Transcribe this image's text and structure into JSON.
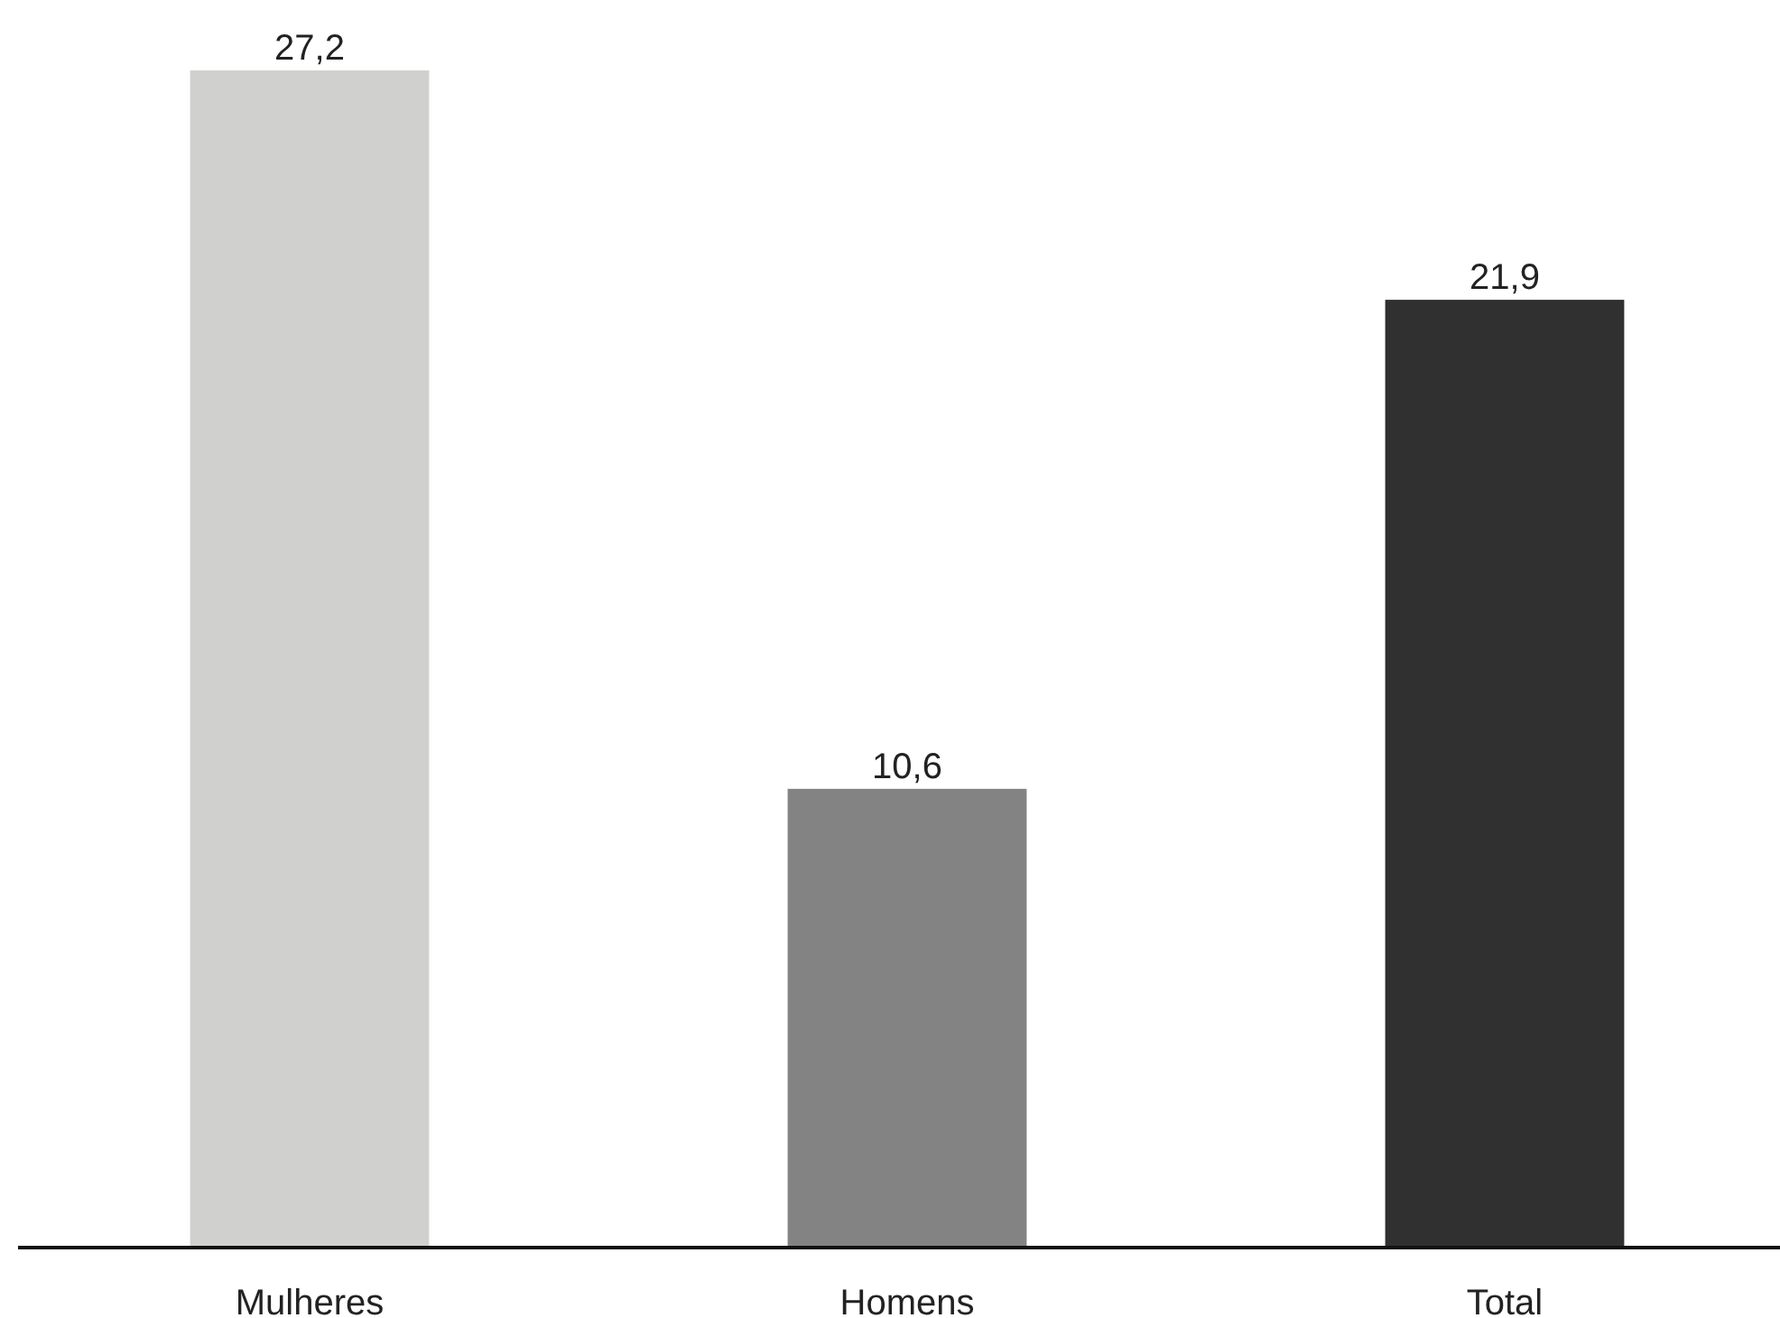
{
  "chart_data": {
    "type": "bar",
    "categories": [
      "Mulheres",
      "Homens",
      "Total"
    ],
    "values": [
      27.2,
      10.6,
      21.9
    ],
    "colors": [
      "#d0d0cf",
      "#828382",
      "#2f302f"
    ],
    "value_labels": [
      "27,2",
      "10,6",
      "21,9"
    ]
  }
}
